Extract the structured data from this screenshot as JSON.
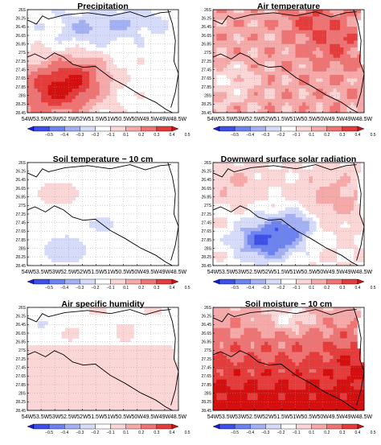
{
  "figure": {
    "colorbar_ticks": [
      "−0.5",
      "−0.4",
      "−0.3",
      "−0.2",
      "−0.1",
      "0.1",
      "0.2",
      "0.3",
      "0.4",
      "0.5"
    ],
    "colorbar_colors": [
      "#1c1cd8",
      "#3d4fe8",
      "#6c83ef",
      "#a3b0f3",
      "#d5dbf9",
      "#ffffff",
      "#fbd6d6",
      "#f5a9a9",
      "#ee7474",
      "#e43b3b",
      "#d40f0f"
    ]
  },
  "chart_data": [
    {
      "type": "heatmap",
      "title": "Precipitation",
      "x_ticks": [
        "54W",
        "53.5W",
        "53W",
        "52.5W",
        "52W",
        "51.5W",
        "51W",
        "50.5W",
        "50W",
        "49.5W",
        "49W",
        "48.5W"
      ],
      "y_ticks": [
        "26S",
        "26.25",
        "26.45",
        "26.65",
        "26.85",
        "27S",
        "27.25",
        "27.45",
        "27.65",
        "27.85",
        "28S",
        "28.25",
        "28.45"
      ],
      "xlim": [
        "54W",
        "48.5W"
      ],
      "ylim": [
        "26S",
        "28.45S"
      ],
      "color_range": [
        -0.5,
        0.5
      ],
      "pattern": "positive anomalies (0.1–0.4) over the southwest quarter; weak negative (−0.1 to −0.2) over the north-central area; near zero in the east"
    },
    {
      "type": "heatmap",
      "title": "Air temperature",
      "x_ticks": [
        "54W",
        "53.5W",
        "53W",
        "52.5W",
        "52W",
        "51.5W",
        "51W",
        "50.5W",
        "50W",
        "49.5W",
        "49W",
        "48.5W"
      ],
      "y_ticks": [
        "26S",
        "26.25",
        "26.45",
        "26.65",
        "26.85",
        "27S",
        "27.25",
        "27.45",
        "27.65",
        "27.85",
        "28S",
        "28.25",
        "28.45"
      ],
      "xlim": [
        "54W",
        "48.5W"
      ],
      "ylim": [
        "26S",
        "28.45S"
      ],
      "color_range": [
        -0.5,
        0.5
      ],
      "pattern": "widespread positive anomalies (0.1–0.4) across the domain; strongest in the north and northeast"
    },
    {
      "type": "heatmap",
      "title": "Soil temperature − 10 cm",
      "x_ticks": [
        "54W",
        "53.5W",
        "53W",
        "52.5W",
        "52W",
        "51.5W",
        "51W",
        "50.5W",
        "50W",
        "49.5W",
        "49W",
        "48.5W"
      ],
      "y_ticks": [
        "26S",
        "26.25",
        "26.45",
        "26.65",
        "26.85",
        "27S",
        "27.25",
        "27.45",
        "27.65",
        "27.85",
        "28S",
        "28.25",
        "28.45"
      ],
      "xlim": [
        "54W",
        "48.5W"
      ],
      "ylim": [
        "26S",
        "28.45S"
      ],
      "color_range": [
        -0.5,
        0.5
      ],
      "pattern": "mostly near zero; weak negative (−0.1) in the southwest; weak positive (0.1) in the northwest"
    },
    {
      "type": "heatmap",
      "title": "Downward surface solar radiation",
      "x_ticks": [
        "54W",
        "53.5W",
        "53W",
        "52.5W",
        "52W",
        "51.5W",
        "51W",
        "50.5W",
        "50W",
        "49.5W",
        "49W",
        "48.5W"
      ],
      "y_ticks": [
        "26S",
        "26.25",
        "26.45",
        "26.65",
        "26.85",
        "27S",
        "27.25",
        "27.45",
        "27.65",
        "27.85",
        "28S",
        "28.25",
        "28.45"
      ],
      "xlim": [
        "54W",
        "48.5W"
      ],
      "ylim": [
        "26S",
        "28.45S"
      ],
      "color_range": [
        -0.5,
        0.5
      ],
      "pattern": "negative anomalies (−0.1 to −0.4) in the south-central region; weak positive (0.1–0.2) in the north and northeast"
    },
    {
      "type": "heatmap",
      "title": "Air specific humidity",
      "x_ticks": [
        "54W",
        "53.5W",
        "53W",
        "52.5W",
        "52W",
        "51.5W",
        "51W",
        "50.5W",
        "50W",
        "49.5W",
        "49W",
        "48.5W"
      ],
      "y_ticks": [
        "26S",
        "26.25",
        "26.45",
        "26.65",
        "26.85",
        "27S",
        "27.25",
        "27.45",
        "27.65",
        "27.85",
        "28S",
        "28.25",
        "28.45"
      ],
      "xlim": [
        "54W",
        "48.5W"
      ],
      "ylim": [
        "26S",
        "28.45S"
      ],
      "color_range": [
        -0.5,
        0.5
      ],
      "pattern": "weak positive anomalies (0.1) over most of the domain; near zero in the north"
    },
    {
      "type": "heatmap",
      "title": "Soil moisture − 10 cm",
      "x_ticks": [
        "54W",
        "53.5W",
        "53W",
        "52.5W",
        "52W",
        "51.5W",
        "51W",
        "50.5W",
        "50W",
        "49.5W",
        "49W",
        "48.5W"
      ],
      "y_ticks": [
        "26S",
        "26.25",
        "26.45",
        "26.65",
        "26.85",
        "27S",
        "27.25",
        "27.45",
        "27.65",
        "27.85",
        "28S",
        "28.25",
        "28.45"
      ],
      "xlim": [
        "54W",
        "48.5W"
      ],
      "ylim": [
        "26S",
        "28.45S"
      ],
      "color_range": [
        -0.5,
        0.5
      ],
      "pattern": "strong positive anomalies (0.3–0.5) across the domain, strongest in the southern half; weaker (0.1–0.2) in the north"
    }
  ]
}
